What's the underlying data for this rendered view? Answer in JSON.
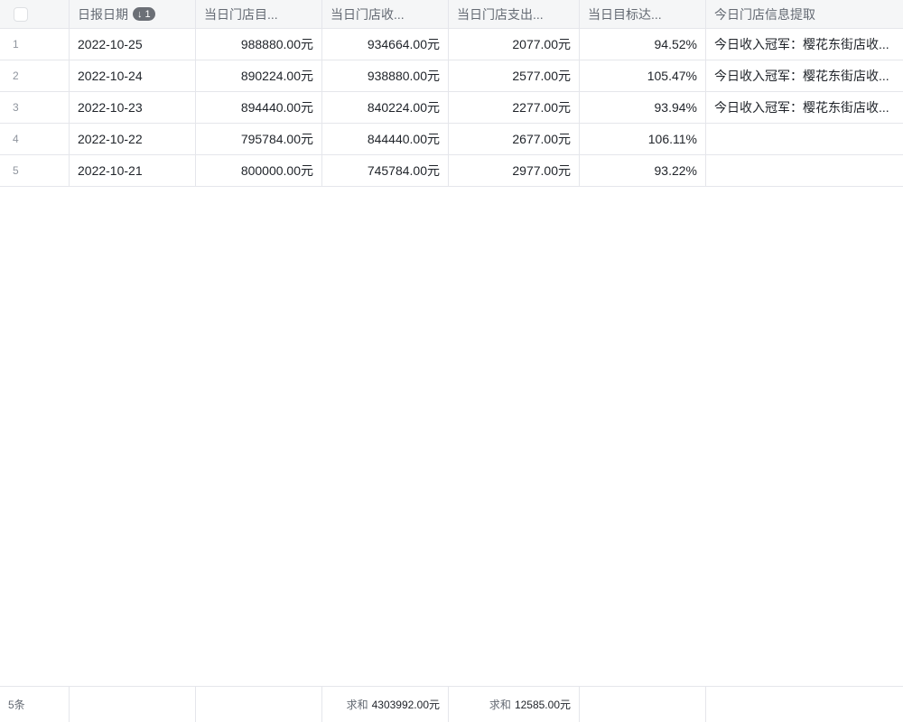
{
  "header": {
    "columns": [
      "日报日期",
      "当日门店目...",
      "当日门店收...",
      "当日门店支出...",
      "当日目标达...",
      "今日门店信息提取"
    ],
    "sort_badge": "↓ 1"
  },
  "rows": [
    {
      "index": "1",
      "date": "2022-10-25",
      "target": "988880.00元",
      "income": "934664.00元",
      "expense": "2077.00元",
      "rate": "94.52%",
      "info": "今日收入冠军：樱花东街店收..."
    },
    {
      "index": "2",
      "date": "2022-10-24",
      "target": "890224.00元",
      "income": "938880.00元",
      "expense": "2577.00元",
      "rate": "105.47%",
      "info": "今日收入冠军：樱花东街店收..."
    },
    {
      "index": "3",
      "date": "2022-10-23",
      "target": "894440.00元",
      "income": "840224.00元",
      "expense": "2277.00元",
      "rate": "93.94%",
      "info": "今日收入冠军：樱花东街店收..."
    },
    {
      "index": "4",
      "date": "2022-10-22",
      "target": "795784.00元",
      "income": "844440.00元",
      "expense": "2677.00元",
      "rate": "106.11%",
      "info": ""
    },
    {
      "index": "5",
      "date": "2022-10-21",
      "target": "800000.00元",
      "income": "745784.00元",
      "expense": "2977.00元",
      "rate": "93.22%",
      "info": ""
    }
  ],
  "footer": {
    "count": "5条",
    "sum_label": "求和",
    "income_sum": "4303992.00元",
    "expense_sum": "12585.00元"
  }
}
